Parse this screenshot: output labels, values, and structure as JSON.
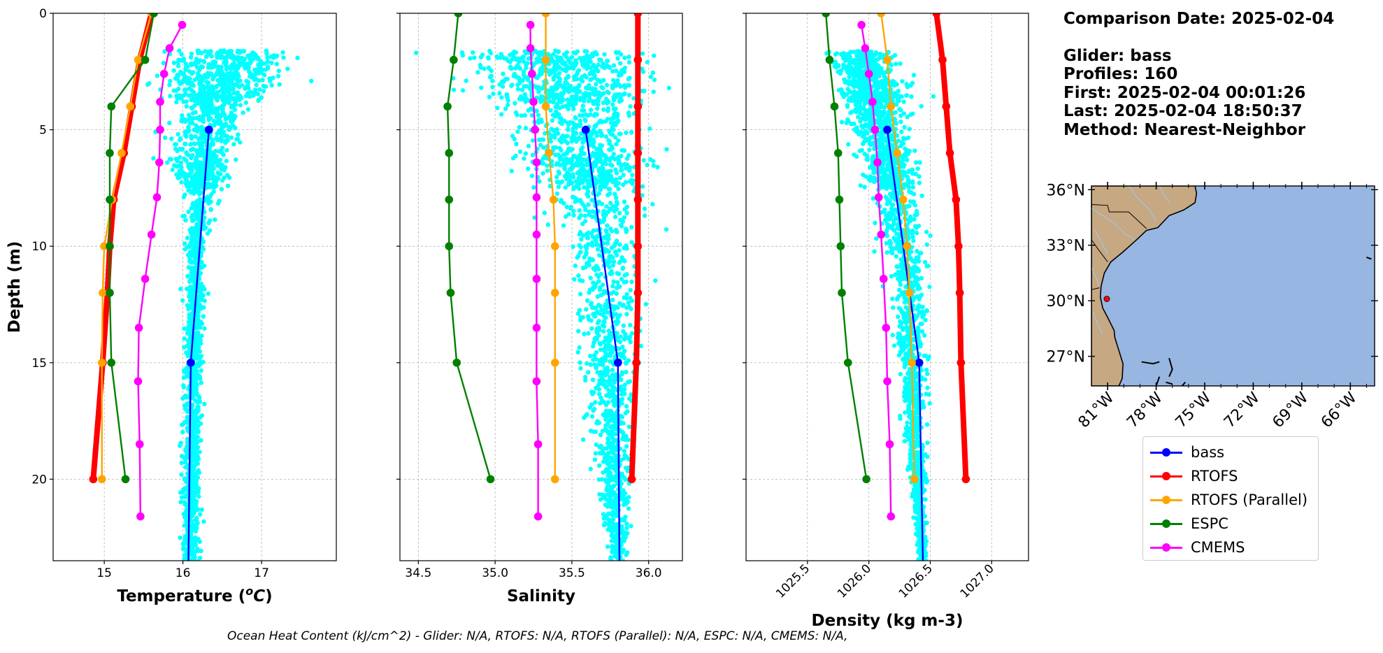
{
  "info": {
    "comparison_date": "Comparison Date: 2025-02-04",
    "glider": "Glider: bass",
    "profiles": "Profiles: 160",
    "first": "First: 2025-02-04 00:01:26",
    "last": "Last: 2025-02-04 18:50:37",
    "method": "Method: Nearest-Neighbor"
  },
  "footer": "Ocean Heat Content (kJ/cm^2) - Glider: N/A,  RTOFS: N/A,  RTOFS (Parallel): N/A,  ESPC: N/A,  CMEMS: N/A,",
  "legend": [
    {
      "label": "bass",
      "color": "#0000ff"
    },
    {
      "label": "RTOFS",
      "color": "#ff0000"
    },
    {
      "label": "RTOFS (Parallel)",
      "color": "#ffa500"
    },
    {
      "label": "ESPC",
      "color": "#008000"
    },
    {
      "label": "CMEMS",
      "color": "#ff00ff"
    }
  ],
  "chart_data": [
    {
      "type": "line",
      "xlabel": "Temperature (°C)",
      "ylabel": "Depth (m)",
      "xlim": [
        14.35,
        17.95
      ],
      "ylim": [
        23.5,
        0
      ],
      "xticks": [
        15,
        16,
        17
      ],
      "yticks": [
        0,
        5,
        10,
        15,
        20
      ],
      "grid": true,
      "scatter_color": "#00ffff",
      "scatter_region": {
        "center": [
          [
            1.8,
            16.6
          ],
          [
            5,
            16.3
          ],
          [
            10,
            16.15
          ],
          [
            23,
            16.1
          ]
        ],
        "spread": [
          [
            1.8,
            0.7
          ],
          [
            5,
            0.35
          ],
          [
            10,
            0.1
          ],
          [
            23,
            0.1
          ]
        ]
      },
      "series": [
        {
          "name": "bass",
          "color": "#0000ff",
          "y": [
            5,
            15,
            23.5
          ],
          "x": [
            16.33,
            16.1,
            16.07
          ]
        },
        {
          "name": "RTOFS",
          "color": "#ff0000",
          "y": [
            0,
            2,
            4,
            6,
            8,
            10,
            12,
            15,
            20
          ],
          "x": [
            15.6,
            15.45,
            15.35,
            15.25,
            15.12,
            15.07,
            15.04,
            14.98,
            14.86
          ]
        },
        {
          "name": "RTOFS (Parallel)",
          "color": "#ffa500",
          "y": [
            0,
            2,
            4,
            6,
            8,
            10,
            12,
            15,
            20
          ],
          "x": [
            15.6,
            15.43,
            15.33,
            15.22,
            15.1,
            15.0,
            14.98,
            14.97,
            14.97
          ]
        },
        {
          "name": "ESPC",
          "color": "#008000",
          "y": [
            0,
            2,
            4,
            6,
            8,
            10,
            12,
            15,
            20
          ],
          "x": [
            15.63,
            15.52,
            15.09,
            15.07,
            15.07,
            15.07,
            15.07,
            15.09,
            15.27
          ]
        },
        {
          "name": "CMEMS",
          "color": "#ff00ff",
          "y": [
            0.5,
            1.5,
            2.6,
            3.8,
            5,
            6.4,
            7.9,
            9.5,
            11.4,
            13.5,
            15.8,
            18.5,
            21.6
          ],
          "x": [
            15.99,
            15.83,
            15.76,
            15.71,
            15.71,
            15.7,
            15.67,
            15.6,
            15.52,
            15.44,
            15.43,
            15.45,
            15.46
          ]
        }
      ]
    },
    {
      "type": "line",
      "xlabel": "Salinity",
      "ylabel": "",
      "xlim": [
        34.38,
        36.22
      ],
      "ylim": [
        23.5,
        0
      ],
      "xticks": [
        34.5,
        35.0,
        35.5,
        36.0
      ],
      "yticks": [
        0,
        5,
        10,
        15,
        20
      ],
      "grid": true,
      "scatter_color": "#00ffff",
      "scatter_region": {
        "center": [
          [
            1.8,
            35.4
          ],
          [
            5,
            35.55
          ],
          [
            10,
            35.7
          ],
          [
            23,
            35.8
          ]
        ],
        "spread": [
          [
            1.8,
            0.55
          ],
          [
            5,
            0.35
          ],
          [
            10,
            0.2
          ],
          [
            23,
            0.05
          ]
        ]
      },
      "series": [
        {
          "name": "bass",
          "color": "#0000ff",
          "y": [
            5,
            15,
            23.5
          ],
          "x": [
            35.59,
            35.8,
            35.81
          ]
        },
        {
          "name": "RTOFS",
          "color": "#ff0000",
          "y": [
            0,
            2,
            4,
            6,
            8,
            10,
            12,
            15,
            20
          ],
          "x": [
            35.93,
            35.93,
            35.93,
            35.93,
            35.93,
            35.93,
            35.93,
            35.92,
            35.89
          ]
        },
        {
          "name": "RTOFS (Parallel)",
          "color": "#ffa500",
          "y": [
            0,
            2,
            4,
            6,
            8,
            10,
            12,
            15,
            20
          ],
          "x": [
            35.33,
            35.33,
            35.33,
            35.35,
            35.38,
            35.39,
            35.39,
            35.39,
            35.39
          ]
        },
        {
          "name": "ESPC",
          "color": "#008000",
          "y": [
            0,
            2,
            4,
            6,
            8,
            10,
            12,
            15,
            20
          ],
          "x": [
            34.76,
            34.73,
            34.69,
            34.7,
            34.7,
            34.7,
            34.71,
            34.75,
            34.97
          ]
        },
        {
          "name": "CMEMS",
          "color": "#ff00ff",
          "y": [
            0.5,
            1.5,
            2.6,
            3.8,
            5,
            6.4,
            7.9,
            9.5,
            11.4,
            13.5,
            15.8,
            18.5,
            21.6
          ],
          "x": [
            35.23,
            35.23,
            35.24,
            35.25,
            35.26,
            35.27,
            35.27,
            35.27,
            35.27,
            35.27,
            35.27,
            35.28,
            35.28
          ]
        }
      ]
    },
    {
      "type": "line",
      "xlabel": "Density (kg m-3)",
      "ylabel": "",
      "xlim": [
        1025.0,
        1027.3
      ],
      "ylim": [
        23.5,
        0
      ],
      "xticks": [
        1025.5,
        1026.0,
        1026.5,
        1027.0
      ],
      "yticks": [
        0,
        5,
        10,
        15,
        20
      ],
      "grid": true,
      "scatter_color": "#00ffff",
      "scatter_region": {
        "center": [
          [
            1.8,
            1025.95
          ],
          [
            5,
            1026.1
          ],
          [
            10,
            1026.3
          ],
          [
            23,
            1026.43
          ]
        ],
        "spread": [
          [
            1.8,
            0.22
          ],
          [
            5,
            0.2
          ],
          [
            10,
            0.14
          ],
          [
            23,
            0.03
          ]
        ]
      },
      "series": [
        {
          "name": "bass",
          "color": "#0000ff",
          "y": [
            5,
            15,
            23.5
          ],
          "x": [
            1026.15,
            1026.41,
            1026.44
          ]
        },
        {
          "name": "RTOFS",
          "color": "#ff0000",
          "y": [
            0,
            2,
            4,
            6,
            8,
            10,
            12,
            15,
            20
          ],
          "x": [
            1026.55,
            1026.6,
            1026.63,
            1026.66,
            1026.71,
            1026.73,
            1026.74,
            1026.75,
            1026.79
          ]
        },
        {
          "name": "RTOFS (Parallel)",
          "color": "#ffa500",
          "y": [
            0,
            2,
            4,
            6,
            8,
            10,
            12,
            15,
            20
          ],
          "x": [
            1026.1,
            1026.15,
            1026.18,
            1026.23,
            1026.28,
            1026.31,
            1026.33,
            1026.35,
            1026.37
          ]
        },
        {
          "name": "ESPC",
          "color": "#008000",
          "y": [
            0,
            2,
            4,
            6,
            8,
            10,
            12,
            15,
            20
          ],
          "x": [
            1025.65,
            1025.68,
            1025.72,
            1025.75,
            1025.76,
            1025.77,
            1025.78,
            1025.83,
            1025.98
          ]
        },
        {
          "name": "CMEMS",
          "color": "#ff00ff",
          "y": [
            0.5,
            1.5,
            2.6,
            3.8,
            5,
            6.4,
            7.9,
            9.5,
            11.4,
            13.5,
            15.8,
            18.5,
            21.6
          ],
          "x": [
            1025.94,
            1025.97,
            1026.0,
            1026.03,
            1026.05,
            1026.07,
            1026.08,
            1026.1,
            1026.12,
            1026.14,
            1026.15,
            1026.17,
            1026.18
          ]
        }
      ]
    }
  ],
  "map": {
    "lat_ticks": [
      "36°N",
      "33°N",
      "30°N",
      "27°N"
    ],
    "lat_values": [
      36,
      33,
      30,
      27
    ],
    "lon_ticks": [
      "81°W",
      "78°W",
      "75°W",
      "72°W",
      "69°W",
      "66°W"
    ],
    "lon_values": [
      -81,
      -78,
      -75,
      -72,
      -69,
      -66
    ],
    "lon_range": [
      -82,
      -64.5
    ],
    "lat_range": [
      25.4,
      36.2
    ],
    "ocean_color": "#97b6e1",
    "land_color": "#c6a882",
    "glider_position": {
      "lat": 30.1,
      "lon": -81.05
    }
  }
}
